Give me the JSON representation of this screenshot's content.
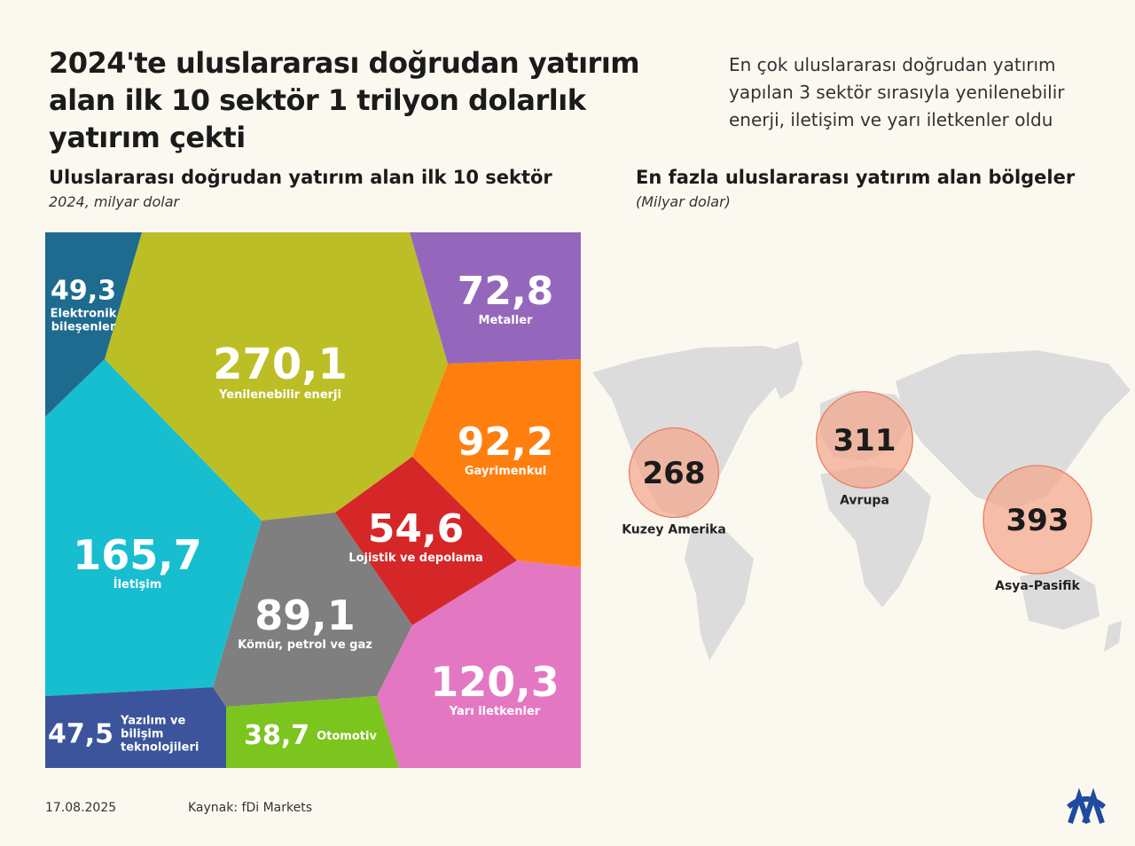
{
  "header": {
    "title": "2024'te uluslararası doğrudan yatırım alan ilk 10 sektör 1 trilyon dolarlık yatırım çekti",
    "summary": "En çok uluslararası doğrudan yatırım yapılan 3 sektör sırasıyla yenilenebilir enerji, iletişim ve yarı iletkenler oldu"
  },
  "chart_data": [
    {
      "type": "voronoi_treemap",
      "title": "Uluslararası doğrudan yatırım alan ilk 10 sektör",
      "subtitle": "2024, milyar dolar",
      "categories": [
        "Yenilenebilir enerji",
        "İletişim",
        "Yarı iletkenler",
        "Gayrimenkul",
        "Kömür, petrol ve gaz",
        "Metaller",
        "Lojistik ve depolama",
        "Elektronik bileşenler",
        "Yazılım ve bilişim teknolojileri",
        "Otomotiv"
      ],
      "values": [
        270.1,
        165.7,
        120.3,
        92.2,
        89.1,
        72.8,
        54.6,
        49.3,
        47.5,
        38.7
      ],
      "value_labels": [
        "270,1",
        "165,7",
        "120,3",
        "92,2",
        "89,1",
        "72,8",
        "54,6",
        "49,3",
        "47,5",
        "38,7"
      ],
      "colors": [
        "#bcbe26",
        "#17becf",
        "#e377c2",
        "#ff7f0e",
        "#7f7f7f",
        "#9467bd",
        "#d62728",
        "#1f6b8f",
        "#3b549b",
        "#7cc41e"
      ]
    },
    {
      "type": "bubble_map",
      "title": "En fazla uluslararası yatırım alan bölgeler",
      "subtitle": "(Milyar dolar)",
      "categories": [
        "Kuzey Amerika",
        "Avrupa",
        "Asya-Pasifik"
      ],
      "values": [
        268,
        311,
        393
      ],
      "color": "#f4a58a"
    }
  ],
  "footer": {
    "date": "17.08.2025",
    "source": "Kaynak: fDi Markets"
  }
}
